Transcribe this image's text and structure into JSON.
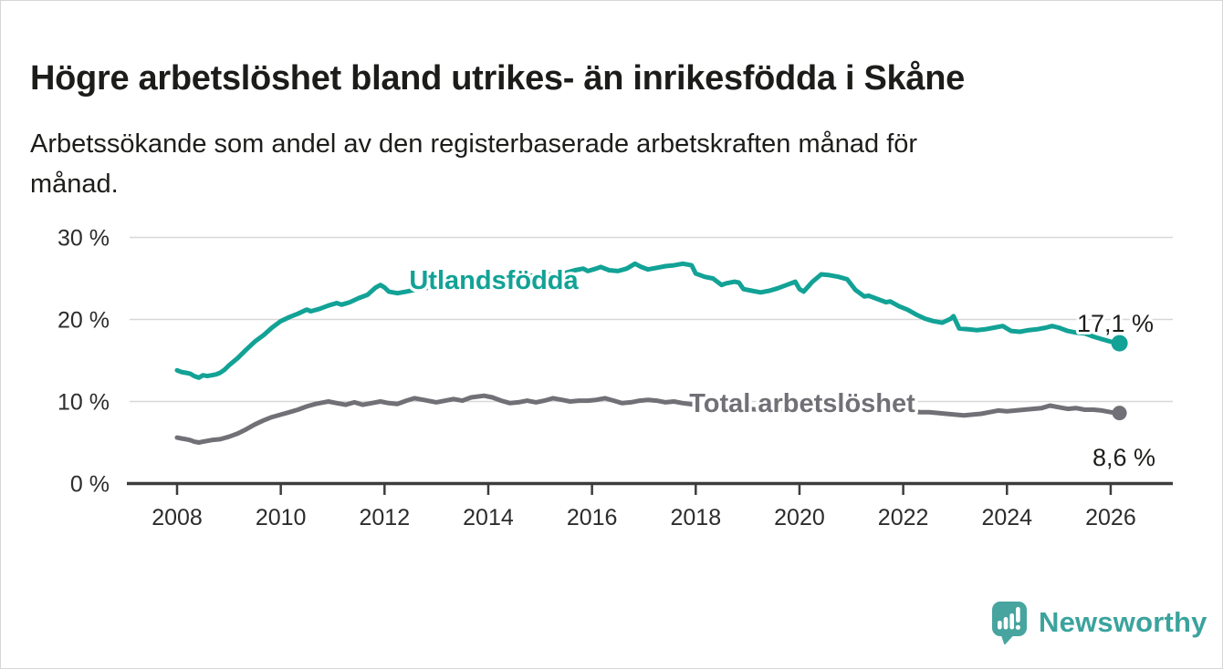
{
  "title": "Högre arbetslöshet bland utrikes- än inrikesfödda i Skåne",
  "subtitle_line1": "Arbetssökande som andel av den registerbaserade arbetskraften månad för",
  "subtitle_line2": "månad.",
  "logo": {
    "text": "Newsworthy",
    "icon": "newsworthy-speech-bubble-bar-chart-icon",
    "icon_color": "#47a49f",
    "text_color": "#3ba39d"
  },
  "chart_data": {
    "type": "line",
    "title": "Högre arbetslöshet bland utrikes- än inrikesfödda i Skåne",
    "subtitle": "Arbetssökande som andel av den registerbaserade arbetskraften månad för månad.",
    "grid": "horizontal-only",
    "x_ticks": [
      2008,
      2010,
      2012,
      2014,
      2016,
      2018,
      2020,
      2022,
      2024,
      2026
    ],
    "y_ticks": [
      0,
      10,
      20,
      30
    ],
    "y_tick_labels": [
      "0 %",
      "10 %",
      "20 %",
      "30 %"
    ],
    "x_range": [
      2007.9,
      2027.2
    ],
    "y_range": [
      0,
      33
    ],
    "colors": {
      "utlandsfodda": "#12a296",
      "total": "#717076",
      "grid": "#d8d8d8",
      "axis": "#3c3c3c",
      "tick_text": "#2c2c2c",
      "annotation_text": "#1d1d1b"
    },
    "series": [
      {
        "name": "Utlandsfödda",
        "color": "#12a296",
        "end_label": "17,1 %",
        "end_value": 17.1,
        "points": [
          [
            2008.0,
            13.8
          ],
          [
            2008.08,
            13.6
          ],
          [
            2008.17,
            13.5
          ],
          [
            2008.25,
            13.4
          ],
          [
            2008.33,
            13.1
          ],
          [
            2008.42,
            12.9
          ],
          [
            2008.5,
            13.2
          ],
          [
            2008.58,
            13.1
          ],
          [
            2008.67,
            13.2
          ],
          [
            2008.75,
            13.3
          ],
          [
            2008.83,
            13.5
          ],
          [
            2008.92,
            13.9
          ],
          [
            2009.0,
            14.4
          ],
          [
            2009.17,
            15.3
          ],
          [
            2009.33,
            16.3
          ],
          [
            2009.5,
            17.3
          ],
          [
            2009.67,
            18.1
          ],
          [
            2009.83,
            19.0
          ],
          [
            2010.0,
            19.8
          ],
          [
            2010.17,
            20.3
          ],
          [
            2010.33,
            20.7
          ],
          [
            2010.5,
            21.2
          ],
          [
            2010.58,
            21.0
          ],
          [
            2010.75,
            21.3
          ],
          [
            2010.92,
            21.7
          ],
          [
            2011.08,
            22.0
          ],
          [
            2011.17,
            21.8
          ],
          [
            2011.33,
            22.1
          ],
          [
            2011.5,
            22.6
          ],
          [
            2011.67,
            23.0
          ],
          [
            2011.83,
            23.9
          ],
          [
            2011.92,
            24.2
          ],
          [
            2012.0,
            23.9
          ],
          [
            2012.08,
            23.4
          ],
          [
            2012.25,
            23.2
          ],
          [
            2012.42,
            23.4
          ],
          [
            2012.58,
            23.6
          ],
          [
            2012.75,
            23.8
          ],
          [
            2013.0,
            24.0
          ],
          [
            2013.25,
            24.3
          ],
          [
            2013.5,
            24.6
          ],
          [
            2013.75,
            24.8
          ],
          [
            2014.0,
            25.0
          ],
          [
            2014.25,
            25.1
          ],
          [
            2014.5,
            25.2
          ],
          [
            2014.75,
            25.3
          ],
          [
            2015.0,
            25.4
          ],
          [
            2015.25,
            25.5
          ],
          [
            2015.5,
            25.7
          ],
          [
            2015.67,
            26.0
          ],
          [
            2015.83,
            26.2
          ],
          [
            2015.92,
            25.9
          ],
          [
            2016.08,
            26.2
          ],
          [
            2016.17,
            26.4
          ],
          [
            2016.33,
            26.0
          ],
          [
            2016.5,
            25.9
          ],
          [
            2016.67,
            26.2
          ],
          [
            2016.83,
            26.8
          ],
          [
            2016.95,
            26.4
          ],
          [
            2017.08,
            26.1
          ],
          [
            2017.25,
            26.3
          ],
          [
            2017.42,
            26.5
          ],
          [
            2017.58,
            26.6
          ],
          [
            2017.75,
            26.8
          ],
          [
            2017.92,
            26.6
          ],
          [
            2018.0,
            25.6
          ],
          [
            2018.17,
            25.2
          ],
          [
            2018.33,
            25.0
          ],
          [
            2018.5,
            24.2
          ],
          [
            2018.58,
            24.4
          ],
          [
            2018.75,
            24.6
          ],
          [
            2018.83,
            24.5
          ],
          [
            2018.92,
            23.7
          ],
          [
            2019.08,
            23.5
          ],
          [
            2019.25,
            23.3
          ],
          [
            2019.42,
            23.5
          ],
          [
            2019.58,
            23.8
          ],
          [
            2019.75,
            24.2
          ],
          [
            2019.92,
            24.6
          ],
          [
            2020.0,
            23.7
          ],
          [
            2020.08,
            23.4
          ],
          [
            2020.25,
            24.6
          ],
          [
            2020.42,
            25.5
          ],
          [
            2020.58,
            25.4
          ],
          [
            2020.75,
            25.2
          ],
          [
            2020.92,
            24.9
          ],
          [
            2021.08,
            23.6
          ],
          [
            2021.25,
            22.8
          ],
          [
            2021.33,
            22.9
          ],
          [
            2021.5,
            22.5
          ],
          [
            2021.67,
            22.1
          ],
          [
            2021.75,
            22.2
          ],
          [
            2021.92,
            21.6
          ],
          [
            2022.08,
            21.2
          ],
          [
            2022.25,
            20.6
          ],
          [
            2022.42,
            20.1
          ],
          [
            2022.58,
            19.8
          ],
          [
            2022.75,
            19.6
          ],
          [
            2022.92,
            20.1
          ],
          [
            2022.97,
            20.4
          ],
          [
            2023.08,
            18.9
          ],
          [
            2023.25,
            18.8
          ],
          [
            2023.42,
            18.7
          ],
          [
            2023.58,
            18.8
          ],
          [
            2023.75,
            19.0
          ],
          [
            2023.92,
            19.2
          ],
          [
            2024.08,
            18.6
          ],
          [
            2024.25,
            18.5
          ],
          [
            2024.42,
            18.7
          ],
          [
            2024.58,
            18.8
          ],
          [
            2024.75,
            19.0
          ],
          [
            2024.87,
            19.2
          ],
          [
            2025.0,
            19.0
          ],
          [
            2025.17,
            18.6
          ],
          [
            2025.33,
            18.4
          ],
          [
            2025.5,
            18.3
          ],
          [
            2025.67,
            17.9
          ],
          [
            2025.83,
            17.6
          ],
          [
            2026.0,
            17.3
          ],
          [
            2026.17,
            17.1
          ]
        ]
      },
      {
        "name": "Total arbetslöshet",
        "color": "#717076",
        "end_label": "8,6 %",
        "end_value": 8.6,
        "points": [
          [
            2008.0,
            5.6
          ],
          [
            2008.08,
            5.5
          ],
          [
            2008.17,
            5.4
          ],
          [
            2008.25,
            5.3
          ],
          [
            2008.33,
            5.1
          ],
          [
            2008.42,
            5.0
          ],
          [
            2008.5,
            5.1
          ],
          [
            2008.67,
            5.3
          ],
          [
            2008.83,
            5.4
          ],
          [
            2009.0,
            5.7
          ],
          [
            2009.17,
            6.1
          ],
          [
            2009.33,
            6.6
          ],
          [
            2009.5,
            7.2
          ],
          [
            2009.67,
            7.7
          ],
          [
            2009.83,
            8.1
          ],
          [
            2010.0,
            8.4
          ],
          [
            2010.17,
            8.7
          ],
          [
            2010.33,
            9.0
          ],
          [
            2010.5,
            9.4
          ],
          [
            2010.67,
            9.7
          ],
          [
            2010.83,
            9.9
          ],
          [
            2010.92,
            10.0
          ],
          [
            2011.08,
            9.8
          ],
          [
            2011.25,
            9.6
          ],
          [
            2011.42,
            9.9
          ],
          [
            2011.58,
            9.6
          ],
          [
            2011.75,
            9.8
          ],
          [
            2011.92,
            10.0
          ],
          [
            2012.08,
            9.8
          ],
          [
            2012.25,
            9.7
          ],
          [
            2012.42,
            10.1
          ],
          [
            2012.58,
            10.4
          ],
          [
            2012.75,
            10.2
          ],
          [
            2013.0,
            9.9
          ],
          [
            2013.17,
            10.1
          ],
          [
            2013.33,
            10.3
          ],
          [
            2013.5,
            10.1
          ],
          [
            2013.67,
            10.5
          ],
          [
            2013.92,
            10.7
          ],
          [
            2014.08,
            10.5
          ],
          [
            2014.25,
            10.1
          ],
          [
            2014.42,
            9.8
          ],
          [
            2014.58,
            9.9
          ],
          [
            2014.75,
            10.1
          ],
          [
            2014.92,
            9.9
          ],
          [
            2015.08,
            10.1
          ],
          [
            2015.25,
            10.4
          ],
          [
            2015.42,
            10.2
          ],
          [
            2015.58,
            10.0
          ],
          [
            2015.75,
            10.1
          ],
          [
            2015.92,
            10.1
          ],
          [
            2016.08,
            10.2
          ],
          [
            2016.25,
            10.4
          ],
          [
            2016.42,
            10.1
          ],
          [
            2016.58,
            9.8
          ],
          [
            2016.75,
            9.9
          ],
          [
            2016.92,
            10.1
          ],
          [
            2017.08,
            10.2
          ],
          [
            2017.25,
            10.1
          ],
          [
            2017.42,
            9.9
          ],
          [
            2017.58,
            10.0
          ],
          [
            2017.75,
            9.8
          ],
          [
            2018.0,
            9.6
          ],
          [
            2018.25,
            9.4
          ],
          [
            2018.5,
            9.3
          ],
          [
            2018.75,
            9.2
          ],
          [
            2019.0,
            9.1
          ],
          [
            2019.25,
            9.0
          ],
          [
            2019.5,
            8.9
          ],
          [
            2019.75,
            9.0
          ],
          [
            2020.0,
            9.1
          ],
          [
            2020.25,
            9.9
          ],
          [
            2020.42,
            10.3
          ],
          [
            2020.58,
            10.2
          ],
          [
            2020.75,
            10.0
          ],
          [
            2021.0,
            9.7
          ],
          [
            2021.25,
            9.4
          ],
          [
            2021.5,
            9.2
          ],
          [
            2021.75,
            9.0
          ],
          [
            2022.0,
            8.9
          ],
          [
            2022.17,
            8.8
          ],
          [
            2022.33,
            8.7
          ],
          [
            2022.5,
            8.7
          ],
          [
            2022.67,
            8.6
          ],
          [
            2022.83,
            8.5
          ],
          [
            2023.0,
            8.4
          ],
          [
            2023.17,
            8.3
          ],
          [
            2023.33,
            8.4
          ],
          [
            2023.5,
            8.5
          ],
          [
            2023.67,
            8.7
          ],
          [
            2023.83,
            8.9
          ],
          [
            2024.0,
            8.8
          ],
          [
            2024.17,
            8.9
          ],
          [
            2024.33,
            9.0
          ],
          [
            2024.5,
            9.1
          ],
          [
            2024.67,
            9.2
          ],
          [
            2024.83,
            9.5
          ],
          [
            2025.0,
            9.3
          ],
          [
            2025.17,
            9.1
          ],
          [
            2025.33,
            9.2
          ],
          [
            2025.5,
            9.0
          ],
          [
            2025.67,
            9.0
          ],
          [
            2025.83,
            8.9
          ],
          [
            2026.0,
            8.7
          ],
          [
            2026.17,
            8.6
          ]
        ]
      }
    ]
  }
}
